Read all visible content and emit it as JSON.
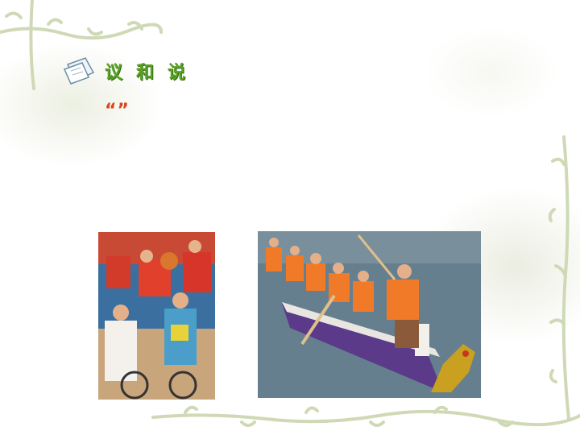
{
  "heading": {
    "icon": "notebook-icon",
    "text": "议和说"
  },
  "body": {
    "quote_open": "“",
    "quote_content": "",
    "quote_close": "”",
    "line1_rest": "",
    "line2": "",
    "line3": ""
  },
  "images": [
    {
      "name": "wheelchair-basketball-photo"
    },
    {
      "name": "dragon-boat-photo"
    }
  ],
  "colors": {
    "heading": "#5aa226",
    "body_text": "#8a2f8c",
    "quote": "#d9461e"
  }
}
